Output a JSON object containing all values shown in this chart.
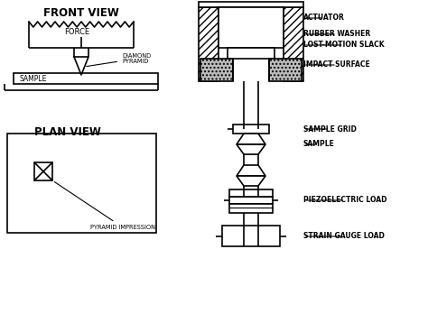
{
  "bg_color": "#ffffff",
  "line_color": "#000000",
  "front_view_label": "FRONT VIEW",
  "plan_view_label": "PLAN VIEW",
  "labels": {
    "force": "FORCE",
    "sample_fv": "SAMPLE",
    "diamond_pyramid": "DIAMOND\nPYRAMID",
    "actuator": "ACTUATOR",
    "rubber_washer": "RUBBER WASHER",
    "lost_motion": "LOST-MOTION SLACK",
    "impact_surface": "IMPACT SURFACE",
    "sample_grid": "SAMPLE GRID",
    "sample_rhs": "SAMPLE",
    "piezoelectric": "PIEZOELECTRIC LOAD",
    "strain_gauge": "STRAIN GAUGE LOAD",
    "pyramid_impression": "PYRAMID IMPRESSION"
  },
  "figsize": [
    4.74,
    3.48
  ],
  "dpi": 100
}
